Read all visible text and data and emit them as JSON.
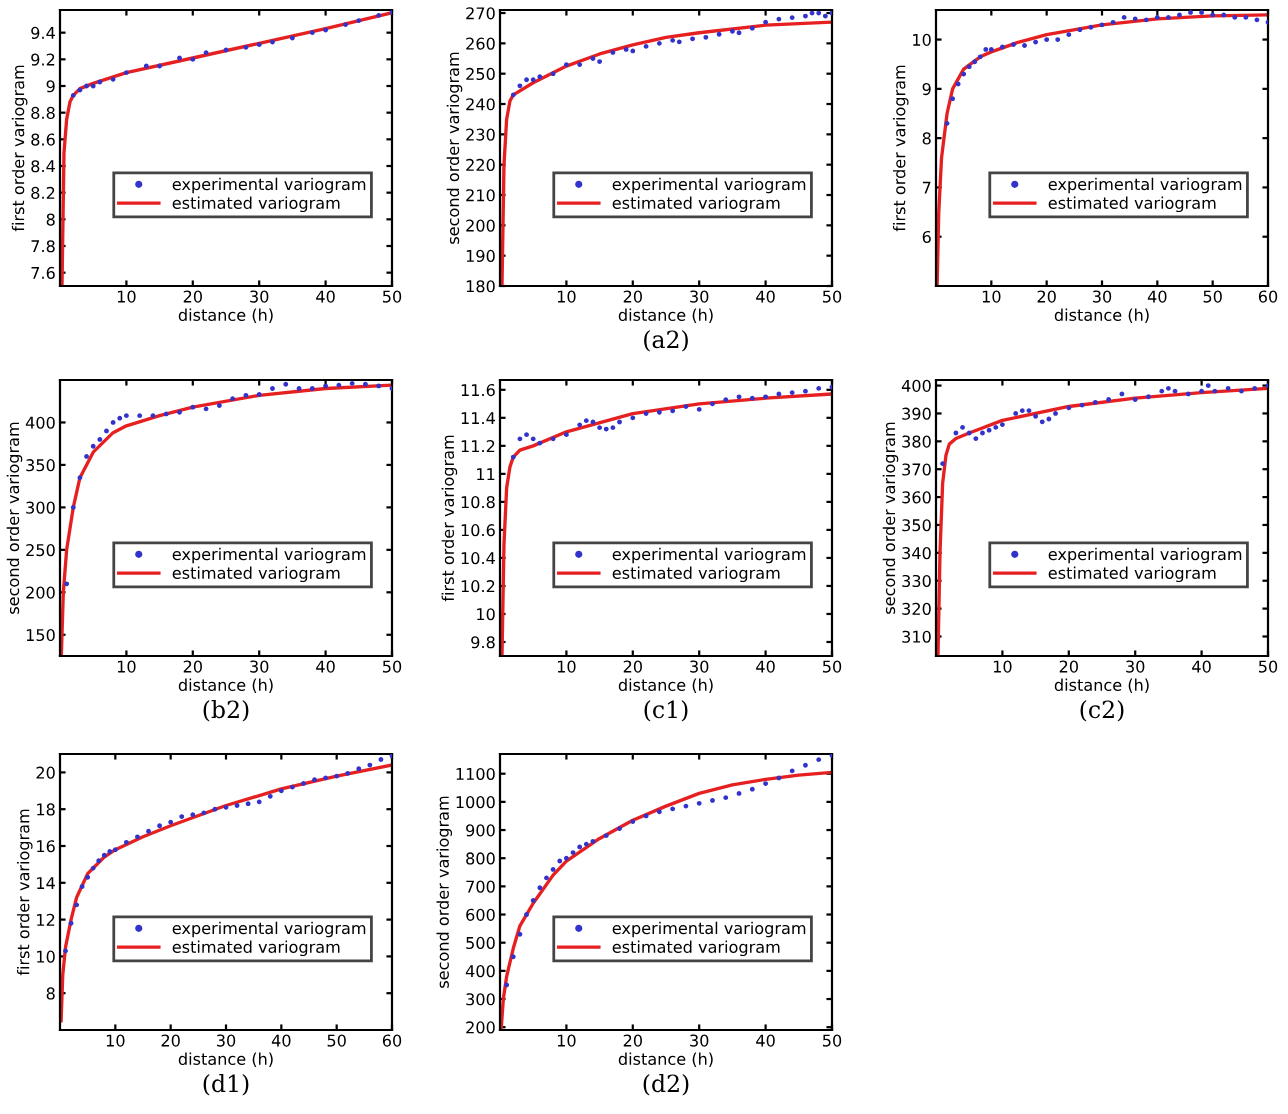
{
  "chart_data": [
    {
      "type": "line",
      "xlabel": "distance (h)",
      "ylabel": "first order variogram",
      "xlim": [
        0,
        50
      ],
      "ylim": [
        7.5,
        9.57
      ],
      "xticks": [
        10,
        20,
        30,
        40,
        50
      ],
      "yticks": [
        7.6,
        7.8,
        8,
        8.2,
        8.4,
        8.6,
        8.8,
        9,
        9.2,
        9.4
      ],
      "grid": false,
      "legend": "center",
      "series": [
        {
          "name": "experimental variogram",
          "type": "scatter",
          "marker": "circle",
          "color": "#3333cc",
          "x": [
            2,
            3,
            4,
            5,
            6,
            8,
            10,
            13,
            15,
            18,
            20,
            22,
            25,
            28,
            30,
            32,
            35,
            38,
            40,
            43,
            45,
            48,
            50
          ],
          "values": [
            8.93,
            8.97,
            9.0,
            9.0,
            9.03,
            9.05,
            9.1,
            9.15,
            9.15,
            9.21,
            9.2,
            9.25,
            9.27,
            9.29,
            9.31,
            9.33,
            9.36,
            9.4,
            9.42,
            9.46,
            9.49,
            9.53,
            9.55
          ]
        },
        {
          "name": "estimated variogram",
          "marker": "none",
          "color": "#e62020",
          "x": [
            0.3,
            0.6,
            1,
            1.5,
            2,
            3,
            5,
            10,
            20,
            30,
            40,
            50
          ],
          "values": [
            7.5,
            8.5,
            8.75,
            8.88,
            8.93,
            8.98,
            9.02,
            9.1,
            9.21,
            9.32,
            9.43,
            9.55
          ]
        }
      ]
    },
    {
      "type": "line",
      "xlabel": "distance (h)",
      "ylabel": "second order variogram",
      "annotations": [
        "(a2)"
      ],
      "xlim": [
        0,
        50
      ],
      "ylim": [
        180,
        271
      ],
      "xticks": [
        10,
        20,
        30,
        40,
        50
      ],
      "yticks": [
        180,
        190,
        200,
        210,
        220,
        230,
        240,
        250,
        260,
        270
      ],
      "grid": false,
      "legend": "center",
      "series": [
        {
          "name": "experimental variogram",
          "type": "scatter",
          "marker": "circle",
          "color": "#3333cc",
          "x": [
            2,
            3,
            4,
            5,
            6,
            8,
            10,
            12,
            14,
            15,
            17,
            19,
            20,
            22,
            24,
            26,
            27,
            29,
            31,
            33,
            35,
            36,
            38,
            40,
            42,
            44,
            46,
            47,
            48,
            49,
            50
          ],
          "values": [
            243,
            246,
            248,
            248,
            249,
            250,
            253,
            253,
            255,
            254,
            257,
            258,
            257.5,
            259,
            260,
            261,
            260.5,
            261.5,
            262,
            263,
            264,
            263.5,
            265,
            267,
            268,
            268.5,
            269,
            270,
            270,
            269,
            270
          ]
        },
        {
          "name": "estimated variogram",
          "marker": "none",
          "color": "#e62020",
          "x": [
            0.3,
            0.6,
            1,
            1.5,
            2,
            5,
            10,
            15,
            20,
            25,
            30,
            40,
            50
          ],
          "values": [
            180,
            220,
            235,
            241,
            243,
            247,
            252.5,
            256.5,
            259.5,
            262,
            263.5,
            266,
            267
          ]
        }
      ]
    },
    {
      "type": "line",
      "xlabel": "distance (h)",
      "ylabel": "first order variogram",
      "xlim": [
        0,
        60
      ],
      "ylim": [
        5,
        10.6
      ],
      "xticks": [
        10,
        20,
        30,
        40,
        50,
        60
      ],
      "yticks": [
        6,
        7,
        8,
        9,
        10
      ],
      "grid": false,
      "legend": "center",
      "series": [
        {
          "name": "experimental variogram",
          "type": "scatter",
          "marker": "circle",
          "color": "#3333cc",
          "x": [
            2,
            3,
            4,
            5,
            6,
            7,
            8,
            9,
            10,
            12,
            14,
            16,
            18,
            20,
            22,
            24,
            26,
            28,
            30,
            32,
            34,
            36,
            38,
            40,
            42,
            44,
            46,
            48,
            50,
            52,
            54,
            56,
            58,
            60
          ],
          "values": [
            8.3,
            8.8,
            9.1,
            9.3,
            9.45,
            9.55,
            9.65,
            9.8,
            9.8,
            9.85,
            9.9,
            9.88,
            9.95,
            10.0,
            10.0,
            10.1,
            10.2,
            10.25,
            10.3,
            10.35,
            10.45,
            10.42,
            10.4,
            10.45,
            10.45,
            10.5,
            10.55,
            10.55,
            10.5,
            10.5,
            10.45,
            10.45,
            10.4,
            10.35
          ]
        },
        {
          "name": "estimated variogram",
          "marker": "none",
          "color": "#e62020",
          "x": [
            0.2,
            0.5,
            1,
            2,
            3,
            5,
            8,
            10,
            15,
            20,
            30,
            40,
            50,
            60
          ],
          "values": [
            5,
            6.5,
            7.6,
            8.5,
            9.0,
            9.4,
            9.65,
            9.75,
            9.95,
            10.1,
            10.3,
            10.42,
            10.48,
            10.5
          ]
        }
      ]
    },
    {
      "type": "line",
      "xlabel": "distance (h)",
      "ylabel": "second order variogram",
      "annotations": [
        "(b2)"
      ],
      "xlim": [
        0,
        50
      ],
      "ylim": [
        125,
        450
      ],
      "xticks": [
        10,
        20,
        30,
        40,
        50
      ],
      "yticks": [
        150,
        200,
        250,
        300,
        350,
        400
      ],
      "grid": false,
      "legend": "center",
      "series": [
        {
          "name": "experimental variogram",
          "type": "scatter",
          "marker": "circle",
          "color": "#3333cc",
          "x": [
            1,
            2,
            3,
            4,
            5,
            6,
            7,
            8,
            9,
            10,
            12,
            14,
            16,
            18,
            20,
            22,
            24,
            26,
            28,
            30,
            32,
            34,
            36,
            38,
            40,
            42,
            44,
            46,
            48,
            50
          ],
          "values": [
            210,
            300,
            335,
            360,
            372,
            380,
            390,
            400,
            405,
            408,
            408,
            408,
            410,
            412,
            418,
            416,
            420,
            428,
            432,
            433,
            440,
            445,
            440,
            440,
            443,
            444,
            446,
            445,
            443,
            440
          ]
        },
        {
          "name": "estimated variogram",
          "marker": "none",
          "color": "#e62020",
          "x": [
            0.2,
            0.5,
            1,
            2,
            3,
            5,
            8,
            10,
            15,
            20,
            30,
            40,
            50
          ],
          "values": [
            125,
            200,
            250,
            300,
            335,
            365,
            388,
            396,
            408,
            418,
            432,
            440,
            444
          ]
        }
      ]
    },
    {
      "type": "line",
      "xlabel": "distance (h)",
      "ylabel": "first order variogram",
      "annotations": [
        "(c1)"
      ],
      "xlim": [
        0,
        50
      ],
      "ylim": [
        9.7,
        11.67
      ],
      "xticks": [
        10,
        20,
        30,
        40,
        50
      ],
      "yticks": [
        9.8,
        10,
        10.2,
        10.4,
        10.6,
        10.8,
        11,
        11.2,
        11.4,
        11.6
      ],
      "grid": false,
      "legend": "center",
      "series": [
        {
          "name": "experimental variogram",
          "type": "scatter",
          "marker": "circle",
          "color": "#3333cc",
          "x": [
            2,
            3,
            4,
            5,
            6,
            8,
            10,
            12,
            13,
            14,
            15,
            16,
            17,
            18,
            20,
            22,
            24,
            26,
            28,
            30,
            32,
            34,
            36,
            38,
            40,
            42,
            44,
            46,
            48,
            50
          ],
          "values": [
            11.12,
            11.25,
            11.28,
            11.25,
            11.22,
            11.25,
            11.28,
            11.35,
            11.38,
            11.37,
            11.33,
            11.32,
            11.33,
            11.37,
            11.4,
            11.43,
            11.44,
            11.45,
            11.48,
            11.46,
            11.5,
            11.53,
            11.55,
            11.54,
            11.55,
            11.57,
            11.58,
            11.59,
            11.61,
            11.62
          ]
        },
        {
          "name": "estimated variogram",
          "marker": "none",
          "color": "#e62020",
          "x": [
            0.3,
            0.6,
            1,
            1.5,
            2,
            3,
            5,
            10,
            20,
            30,
            40,
            50
          ],
          "values": [
            9.7,
            10.5,
            10.9,
            11.05,
            11.12,
            11.17,
            11.2,
            11.3,
            11.43,
            11.5,
            11.54,
            11.57
          ]
        }
      ]
    },
    {
      "type": "line",
      "xlabel": "distance (h)",
      "ylabel": "second order variogram",
      "annotations": [
        "(c2)"
      ],
      "xlim": [
        0,
        50
      ],
      "ylim": [
        303,
        402
      ],
      "xticks": [
        10,
        20,
        30,
        40,
        50
      ],
      "yticks": [
        310,
        320,
        330,
        340,
        350,
        360,
        370,
        380,
        390,
        400
      ],
      "grid": false,
      "legend": "center",
      "series": [
        {
          "name": "experimental variogram",
          "type": "scatter",
          "marker": "circle",
          "color": "#3333cc",
          "x": [
            1,
            3,
            4,
            5,
            6,
            7,
            8,
            9,
            10,
            12,
            13,
            14,
            15,
            16,
            17,
            18,
            20,
            22,
            24,
            26,
            28,
            30,
            32,
            34,
            35,
            36,
            38,
            40,
            41,
            42,
            44,
            46,
            48,
            50
          ],
          "values": [
            372,
            383,
            385,
            383,
            381,
            383,
            384,
            385,
            386,
            390,
            391,
            391,
            389,
            387,
            388,
            390,
            392,
            393,
            394,
            395,
            397,
            395,
            396,
            398,
            399,
            398,
            397,
            398,
            400,
            398,
            399,
            398,
            399,
            400
          ]
        },
        {
          "name": "estimated variogram",
          "marker": "none",
          "color": "#e62020",
          "x": [
            0.3,
            0.6,
            1,
            1.5,
            2,
            3,
            5,
            10,
            20,
            30,
            40,
            50
          ],
          "values": [
            303,
            340,
            365,
            375,
            379,
            381,
            383,
            387.5,
            392.5,
            395.5,
            397.5,
            399
          ]
        }
      ]
    },
    {
      "type": "line",
      "xlabel": "distance (h)",
      "ylabel": "first order variogram",
      "annotations": [
        "(d1)"
      ],
      "xlim": [
        0,
        60
      ],
      "ylim": [
        6,
        21
      ],
      "xticks": [
        10,
        20,
        30,
        40,
        50,
        60
      ],
      "yticks": [
        8,
        10,
        12,
        14,
        16,
        18,
        20
      ],
      "grid": false,
      "legend": "center",
      "series": [
        {
          "name": "experimental variogram",
          "type": "scatter",
          "marker": "circle",
          "color": "#3333cc",
          "x": [
            1,
            2,
            3,
            4,
            5,
            6,
            7,
            8,
            9,
            10,
            12,
            14,
            16,
            18,
            20,
            22,
            24,
            26,
            28,
            30,
            32,
            34,
            36,
            38,
            40,
            42,
            44,
            46,
            48,
            50,
            52,
            54,
            56,
            58,
            60
          ],
          "values": [
            10.3,
            11.8,
            12.8,
            13.8,
            14.3,
            14.8,
            15.2,
            15.5,
            15.7,
            15.8,
            16.2,
            16.5,
            16.8,
            17.1,
            17.3,
            17.6,
            17.7,
            17.8,
            18.0,
            18.1,
            18.2,
            18.3,
            18.4,
            18.7,
            19.0,
            19.2,
            19.4,
            19.6,
            19.7,
            19.8,
            19.95,
            20.2,
            20.4,
            20.7,
            20.9
          ]
        },
        {
          "name": "estimated variogram",
          "marker": "none",
          "color": "#e62020",
          "x": [
            0.2,
            0.5,
            1,
            2,
            3,
            5,
            8,
            10,
            15,
            20,
            30,
            40,
            50,
            60
          ],
          "values": [
            6.5,
            9,
            10.5,
            12,
            13.2,
            14.5,
            15.4,
            15.8,
            16.5,
            17.1,
            18.2,
            19.1,
            19.8,
            20.4
          ]
        }
      ]
    },
    {
      "type": "line",
      "xlabel": "distance (h)",
      "ylabel": "second order variogram",
      "annotations": [
        "(d2)"
      ],
      "xlim": [
        0,
        50
      ],
      "ylim": [
        190,
        1170
      ],
      "xticks": [
        10,
        20,
        30,
        40,
        50
      ],
      "yticks": [
        200,
        300,
        400,
        500,
        600,
        700,
        800,
        900,
        1000,
        1100
      ],
      "grid": false,
      "legend": "center",
      "series": [
        {
          "name": "experimental variogram",
          "type": "scatter",
          "marker": "circle",
          "color": "#3333cc",
          "x": [
            1,
            2,
            3,
            4,
            5,
            6,
            7,
            8,
            9,
            10,
            11,
            12,
            13,
            14,
            16,
            18,
            20,
            22,
            24,
            26,
            28,
            30,
            32,
            34,
            36,
            38,
            40,
            42,
            44,
            46,
            48,
            50
          ],
          "values": [
            350,
            450,
            530,
            600,
            650,
            695,
            730,
            760,
            790,
            800,
            820,
            840,
            850,
            860,
            880,
            905,
            930,
            950,
            965,
            975,
            985,
            995,
            1005,
            1015,
            1030,
            1045,
            1065,
            1085,
            1110,
            1130,
            1150,
            1165
          ]
        },
        {
          "name": "estimated variogram",
          "marker": "none",
          "color": "#e62020",
          "x": [
            0.2,
            0.5,
            1,
            2,
            3,
            5,
            8,
            10,
            15,
            20,
            25,
            30,
            35,
            40,
            45,
            50
          ],
          "values": [
            200,
            300,
            380,
            480,
            560,
            640,
            740,
            790,
            870,
            935,
            985,
            1030,
            1060,
            1080,
            1095,
            1105
          ]
        }
      ]
    }
  ]
}
